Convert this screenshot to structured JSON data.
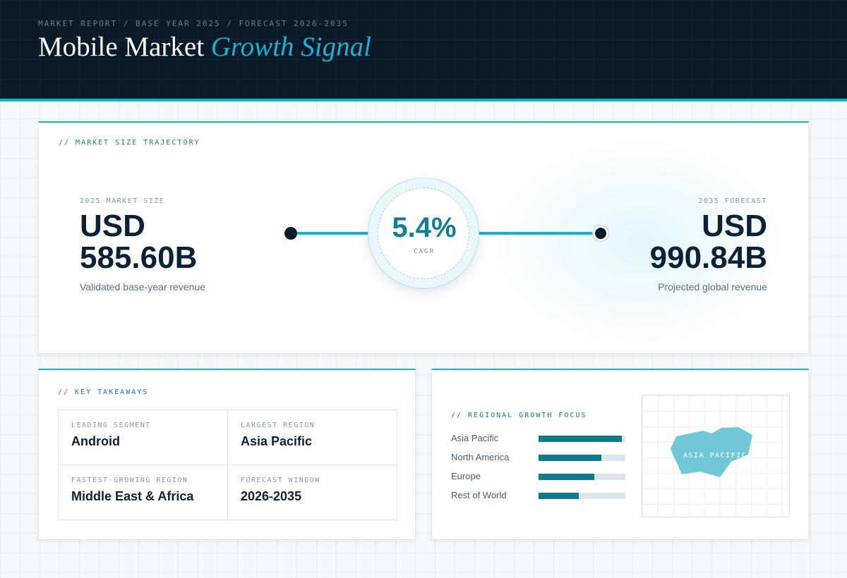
{
  "header": {
    "eyebrow": "MARKET REPORT / BASE YEAR 2025 / FORECAST 2026-2035",
    "title_plain": "Mobile Market",
    "title_accent": "Growth Signal"
  },
  "trajectory": {
    "label": "// MARKET SIZE TRAJECTORY",
    "start": {
      "kicker": "2025 MARKET SIZE",
      "currency": "USD",
      "value": "585.60B",
      "caption": "Validated base-year revenue"
    },
    "end": {
      "kicker": "2035 FORECAST",
      "currency": "USD",
      "value": "990.84B",
      "caption": "Projected global revenue"
    },
    "cagr": {
      "value": "5.4%",
      "label": "CAGR"
    }
  },
  "takeaways": {
    "label": "// KEY TAKEAWAYS",
    "items": [
      {
        "key": "LEADING SEGMENT",
        "value": "Android"
      },
      {
        "key": "LARGEST REGION",
        "value": "Asia Pacific"
      },
      {
        "key": "FASTEST-GROWING REGION",
        "value": "Middle East & Africa"
      },
      {
        "key": "FORECAST WINDOW",
        "value": "2026-2035"
      }
    ]
  },
  "regional": {
    "label": "// REGIONAL GROWTH FOCUS",
    "bars": [
      {
        "name": "Asia Pacific",
        "level": 0.96
      },
      {
        "name": "North America",
        "level": 0.72
      },
      {
        "name": "Europe",
        "level": 0.64
      },
      {
        "name": "Rest of World",
        "level": 0.46
      }
    ],
    "map_label": "ASIA PACIFIC"
  },
  "colors": {
    "header_bg": "#0a1a28",
    "accent": "#13b2cf",
    "teal": "#0f7a8c",
    "ink": "#0b2236"
  }
}
